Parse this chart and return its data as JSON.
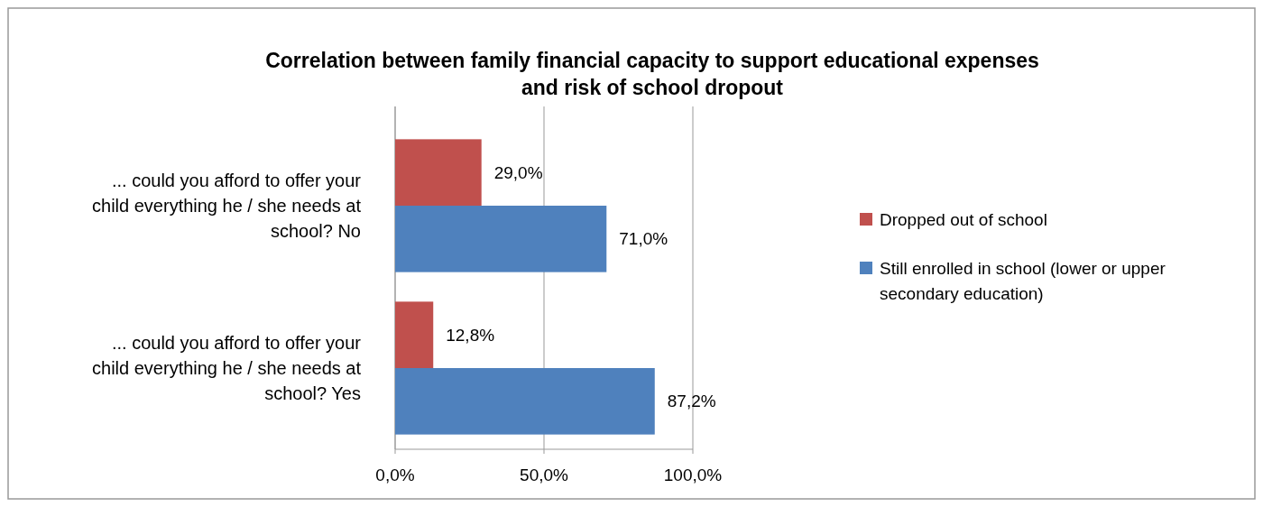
{
  "chart_data": {
    "type": "bar",
    "orientation": "horizontal",
    "title": "Correlation between family financial capacity to support educational expenses and risk of school dropout",
    "categories": [
      "... could you afford to offer your child everything he / she needs at school? No",
      "... could you afford to offer your child everything he / she needs at school? Yes"
    ],
    "series": [
      {
        "name": "Dropped out of school",
        "color": "#c0504d",
        "values": [
          29.0,
          12.8
        ],
        "value_labels": [
          "29,0%",
          "12,8%"
        ]
      },
      {
        "name": "Still enrolled in school (lower or upper secondary education)",
        "color": "#4f81bd",
        "values": [
          71.0,
          87.2
        ],
        "value_labels": [
          "71,0%",
          "87,2%"
        ]
      }
    ],
    "xlim": [
      0,
      100
    ],
    "xticks": [
      {
        "value": 0,
        "label": "0,0%"
      },
      {
        "value": 50,
        "label": "50,0%"
      },
      {
        "value": 100,
        "label": "100,0%"
      }
    ],
    "grid": "x",
    "legend": "right"
  }
}
